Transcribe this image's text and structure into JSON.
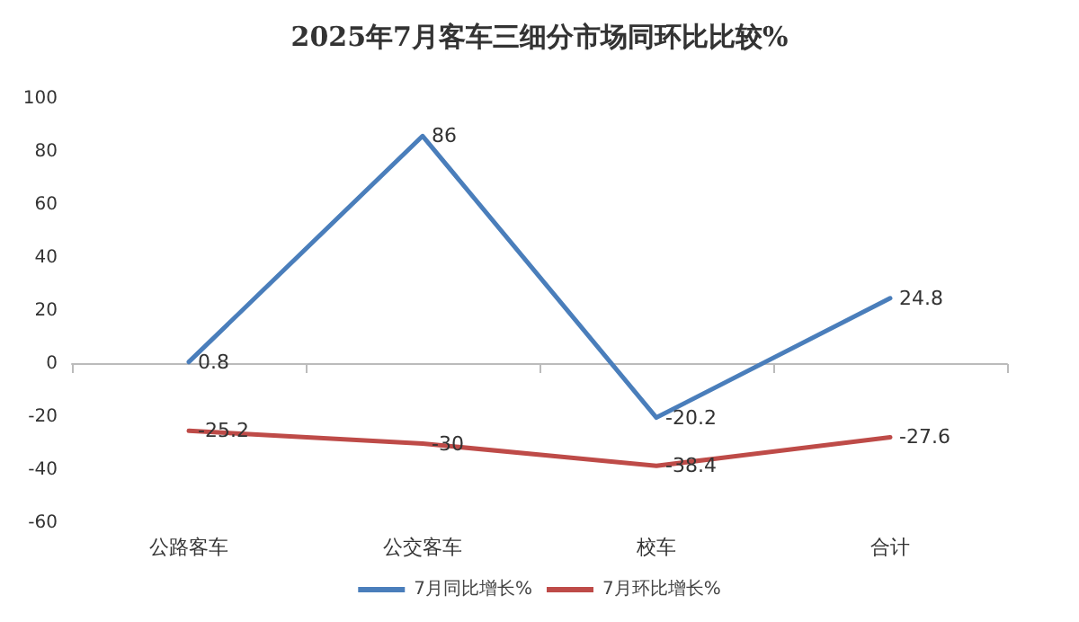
{
  "chart_data": {
    "type": "line",
    "title": "2025年7月客车三细分市场同环比比较%",
    "categories": [
      "公路客车",
      "公交客车",
      "校车",
      "合计"
    ],
    "series": [
      {
        "name": "7月同比增长%",
        "color": "#4a7ebb",
        "values": [
          0.8,
          86,
          -20.2,
          24.8
        ]
      },
      {
        "name": "7月环比增长%",
        "color": "#be4b48",
        "values": [
          -25.2,
          -30,
          -38.4,
          -27.6
        ]
      }
    ],
    "ylim": [
      -60,
      100
    ],
    "yticks": [
      -60,
      -40,
      -20,
      0,
      20,
      40,
      60,
      80,
      100
    ],
    "legend": "bottom",
    "marker": "none",
    "line_style": "solid",
    "data_labels": true
  }
}
